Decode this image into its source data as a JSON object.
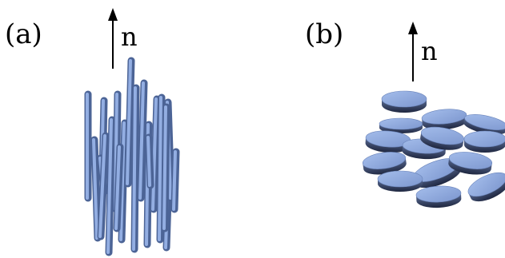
{
  "panels": [
    {
      "label": "(a)",
      "director_label": "n",
      "particles": "rods"
    },
    {
      "label": "(b)",
      "director_label": "n",
      "particles": "discs"
    }
  ],
  "colors": {
    "particle_fill": "#7f9ad2",
    "particle_top": "#93aee2",
    "particle_shadow": "#2b3550",
    "arrow": "#000000"
  }
}
